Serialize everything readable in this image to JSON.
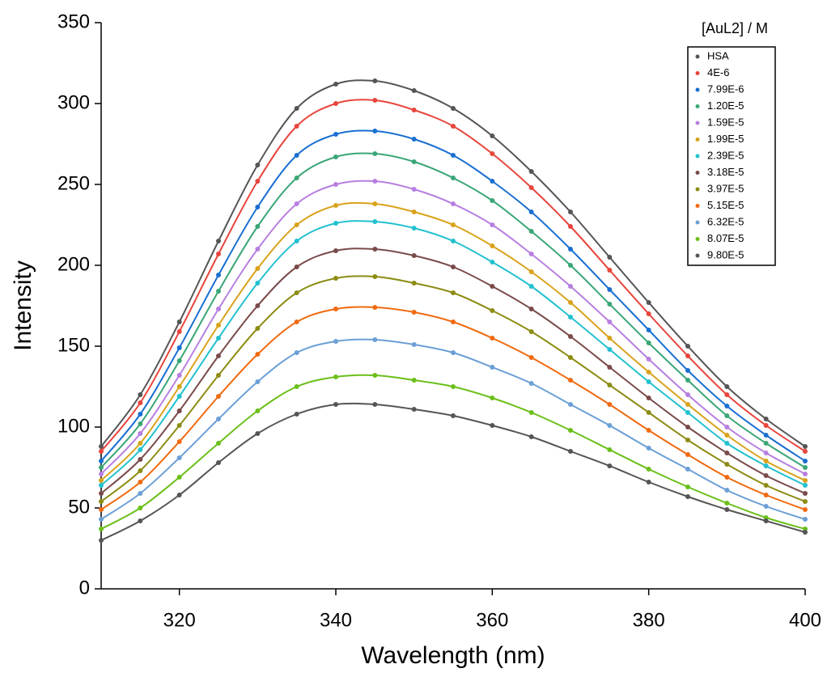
{
  "chart_data": {
    "type": "scatter-line",
    "x_label": "Wavelength (nm)",
    "y_label": "Intensity",
    "legend_title": "[AuL2] / M",
    "legend": "upper right",
    "xlim": [
      310,
      400
    ],
    "xticks": [
      320,
      340,
      360,
      380,
      400
    ],
    "ylim": [
      0,
      350
    ],
    "yticks": [
      0,
      50,
      100,
      150,
      200,
      250,
      300,
      350
    ],
    "x": [
      310,
      315,
      320,
      325,
      330,
      335,
      340,
      345,
      350,
      355,
      360,
      365,
      370,
      375,
      380,
      385,
      390,
      395,
      400
    ],
    "series": [
      {
        "name": "HSA",
        "color": "#555555",
        "values": [
          88,
          120,
          165,
          215,
          262,
          297,
          312,
          314,
          308,
          297,
          280,
          258,
          233,
          205,
          177,
          150,
          125,
          105,
          88
        ]
      },
      {
        "name": "4E-6",
        "color": "#e8453c",
        "values": [
          85,
          115,
          159,
          207,
          252,
          286,
          300,
          302,
          296,
          286,
          269,
          248,
          224,
          197,
          170,
          144,
          120,
          101,
          85
        ]
      },
      {
        "name": "7.99E-6",
        "color": "#1a6fd1",
        "values": [
          79,
          108,
          149,
          194,
          236,
          268,
          281,
          283,
          278,
          268,
          252,
          233,
          210,
          185,
          160,
          135,
          113,
          95,
          79
        ]
      },
      {
        "name": "1.20E-5",
        "color": "#3aa676",
        "values": [
          75,
          102,
          141,
          184,
          224,
          254,
          267,
          269,
          264,
          254,
          240,
          221,
          200,
          176,
          152,
          129,
          107,
          90,
          75
        ]
      },
      {
        "name": "1.59E-5",
        "color": "#b77fe0",
        "values": [
          71,
          96,
          132,
          173,
          210,
          238,
          250,
          252,
          247,
          238,
          225,
          207,
          187,
          165,
          142,
          120,
          100,
          84,
          71
        ]
      },
      {
        "name": "1.99E-5",
        "color": "#d9a21b",
        "values": [
          67,
          90,
          125,
          163,
          198,
          225,
          237,
          238,
          233,
          225,
          212,
          196,
          177,
          155,
          134,
          114,
          95,
          79,
          67
        ]
      },
      {
        "name": "2.39E-5",
        "color": "#22c1cf",
        "values": [
          64,
          86,
          119,
          155,
          189,
          215,
          226,
          227,
          223,
          215,
          202,
          187,
          168,
          148,
          128,
          109,
          90,
          76,
          64
        ]
      },
      {
        "name": "3.18E-5",
        "color": "#7a4a4a",
        "values": [
          59,
          80,
          110,
          144,
          175,
          199,
          209,
          210,
          206,
          199,
          187,
          173,
          156,
          137,
          118,
          100,
          84,
          70,
          59
        ]
      },
      {
        "name": "3.97E-5",
        "color": "#8c8c14",
        "values": [
          54,
          73,
          101,
          132,
          161,
          183,
          192,
          193,
          189,
          183,
          172,
          159,
          143,
          126,
          109,
          92,
          77,
          64,
          54
        ]
      },
      {
        "name": "5.15E-5",
        "color": "#f06a10",
        "values": [
          49,
          66,
          91,
          119,
          145,
          165,
          173,
          174,
          171,
          165,
          155,
          143,
          129,
          114,
          98,
          83,
          69,
          58,
          49
        ]
      },
      {
        "name": "6.32E-5",
        "color": "#6b9fd6",
        "values": [
          43,
          59,
          81,
          105,
          128,
          146,
          153,
          154,
          151,
          146,
          137,
          127,
          114,
          101,
          87,
          74,
          61,
          51,
          43
        ]
      },
      {
        "name": "8.07E-5",
        "color": "#6bbf1a",
        "values": [
          37,
          50,
          69,
          90,
          110,
          125,
          131,
          132,
          129,
          125,
          118,
          109,
          98,
          86,
          74,
          63,
          53,
          44,
          37
        ]
      },
      {
        "name": "9.80E-5",
        "color": "#555555",
        "values": [
          30,
          42,
          58,
          78,
          96,
          108,
          114,
          114,
          111,
          107,
          101,
          94,
          85,
          76,
          66,
          57,
          49,
          42,
          35
        ]
      }
    ]
  }
}
